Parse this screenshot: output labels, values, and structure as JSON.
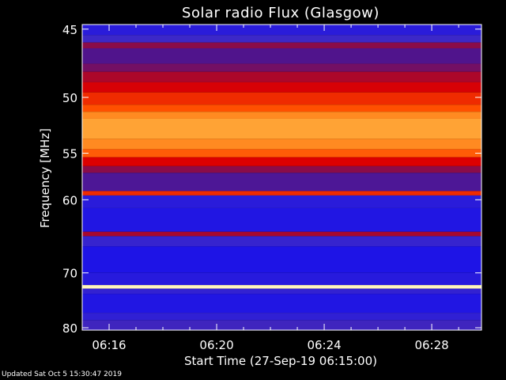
{
  "chart_data": {
    "type": "heatmap",
    "title": "Solar radio Flux (Glasgow)",
    "xlabel": "Start Time (27-Sep-19 06:15:00)",
    "ylabel": "Frequency [MHz]",
    "x_ticks": [
      "06:16",
      "06:20",
      "06:24",
      "06:28"
    ],
    "x_tick_minutes": [
      16,
      20,
      24,
      28
    ],
    "x_range_minutes": [
      15.0,
      29.85
    ],
    "y_ticks": [
      45,
      50,
      55,
      60,
      70,
      80
    ],
    "y_scale": "reciprocal",
    "y_range": [
      44.7,
      80.5
    ],
    "colormap": "blue-red-yellow-white",
    "bands": [
      {
        "f0": 44.7,
        "f1": 45.4,
        "level": 0.12
      },
      {
        "f0": 45.4,
        "f1": 45.9,
        "level": 0.18
      },
      {
        "f0": 45.9,
        "f1": 46.3,
        "level": 0.4
      },
      {
        "f0": 46.3,
        "f1": 47.4,
        "level": 0.3
      },
      {
        "f0": 47.4,
        "f1": 48.0,
        "level": 0.36
      },
      {
        "f0": 48.0,
        "f1": 48.8,
        "level": 0.46
      },
      {
        "f0": 48.8,
        "f1": 49.6,
        "level": 0.54
      },
      {
        "f0": 49.6,
        "f1": 50.6,
        "level": 0.62
      },
      {
        "f0": 50.6,
        "f1": 51.2,
        "level": 0.68
      },
      {
        "f0": 51.2,
        "f1": 51.8,
        "level": 0.78
      },
      {
        "f0": 51.8,
        "f1": 53.6,
        "level": 0.82
      },
      {
        "f0": 53.6,
        "f1": 54.6,
        "level": 0.78
      },
      {
        "f0": 54.6,
        "f1": 55.4,
        "level": 0.7
      },
      {
        "f0": 55.4,
        "f1": 56.3,
        "level": 0.55
      },
      {
        "f0": 56.3,
        "f1": 57.0,
        "level": 0.4
      },
      {
        "f0": 57.0,
        "f1": 59.0,
        "level": 0.28
      },
      {
        "f0": 59.0,
        "f1": 59.5,
        "level": 0.62
      },
      {
        "f0": 59.5,
        "f1": 61.0,
        "level": 0.12
      },
      {
        "f0": 61.0,
        "f1": 64.0,
        "level": 0.09
      },
      {
        "f0": 64.0,
        "f1": 64.6,
        "level": 0.45
      },
      {
        "f0": 64.6,
        "f1": 66.0,
        "level": 0.16
      },
      {
        "f0": 66.0,
        "f1": 70.0,
        "level": 0.08
      },
      {
        "f0": 70.0,
        "f1": 72.0,
        "level": 0.11
      },
      {
        "f0": 72.0,
        "f1": 72.6,
        "level": 0.97
      },
      {
        "f0": 72.6,
        "f1": 73.5,
        "level": 0.15
      },
      {
        "f0": 73.5,
        "f1": 77.0,
        "level": 0.09
      },
      {
        "f0": 77.0,
        "f1": 78.5,
        "level": 0.14
      },
      {
        "f0": 78.5,
        "f1": 80.5,
        "level": 0.2
      }
    ]
  },
  "footer": {
    "text": "Updated Sat Oct  5 15:30:47 2019"
  }
}
